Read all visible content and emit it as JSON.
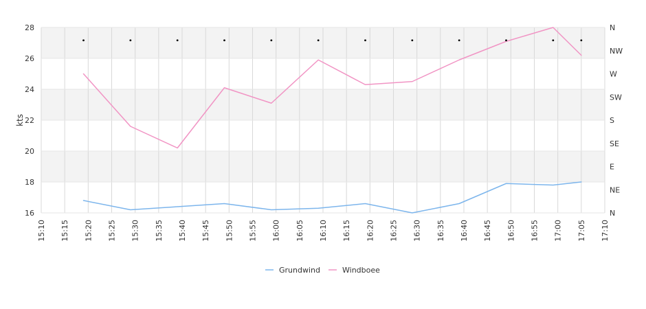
{
  "chart_data": {
    "type": "line",
    "ylabel": "kts",
    "ylim": [
      16,
      28
    ],
    "yticks": [
      16,
      18,
      20,
      22,
      24,
      26,
      28
    ],
    "xlim": [
      "15:10",
      "17:10"
    ],
    "xticks": [
      "15:10",
      "15:15",
      "15:20",
      "15:25",
      "15:30",
      "15:35",
      "15:40",
      "15:45",
      "15:50",
      "15:55",
      "16:00",
      "16:05",
      "16:10",
      "16:15",
      "16:20",
      "16:25",
      "16:30",
      "16:35",
      "16:40",
      "16:45",
      "16:50",
      "16:55",
      "17:00",
      "17:05",
      "17:10"
    ],
    "x": [
      "15:19",
      "15:29",
      "15:39",
      "15:49",
      "15:59",
      "16:09",
      "16:19",
      "16:29",
      "16:39",
      "16:49",
      "16:59",
      "17:05"
    ],
    "series": [
      {
        "name": "Grundwind",
        "color": "#7cb5ec",
        "values": [
          16.8,
          16.2,
          16.4,
          16.6,
          16.2,
          16.3,
          16.6,
          16.0,
          16.6,
          17.9,
          17.8,
          18.0
        ]
      },
      {
        "name": "Windboee",
        "color": "#f194c4",
        "values": [
          25.0,
          21.6,
          20.2,
          24.1,
          23.1,
          25.9,
          24.3,
          24.5,
          25.9,
          27.1,
          28.0,
          26.2
        ]
      }
    ],
    "direction_axis": {
      "labels": [
        "N",
        "NE",
        "E",
        "SE",
        "S",
        "SW",
        "W",
        "NW",
        "N"
      ],
      "values": [
        0,
        45,
        90,
        135,
        180,
        225,
        270,
        315,
        360
      ]
    },
    "direction_markers": {
      "x": [
        "15:19",
        "15:29",
        "15:39",
        "15:49",
        "15:59",
        "16:09",
        "16:19",
        "16:29",
        "16:39",
        "16:49",
        "16:59",
        "17:05"
      ],
      "values": [
        335,
        335,
        335,
        335,
        335,
        335,
        335,
        335,
        335,
        335,
        335,
        335
      ]
    },
    "grid": true,
    "band_color": "#f3f3f3",
    "legend_position": "bottom-center"
  }
}
